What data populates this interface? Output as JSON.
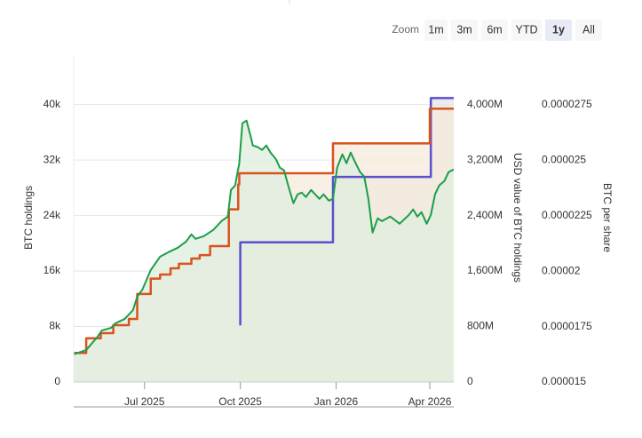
{
  "range_selector": {
    "label": "Zoom",
    "buttons": [
      "1m",
      "3m",
      "6m",
      "YTD",
      "1y",
      "All"
    ],
    "selected": "1y"
  },
  "chart_data": {
    "type": "line",
    "xlim": [
      "2025-04-24",
      "2026-04-24"
    ],
    "xticks": [
      {
        "value": "2025-07-01",
        "label": "Jul 2025"
      },
      {
        "value": "2025-10-01",
        "label": "Oct 2025"
      },
      {
        "value": "2026-01-01",
        "label": "Jan 2026"
      },
      {
        "value": "2026-04-01",
        "label": "Apr 2026"
      }
    ],
    "ylabel": "BTC holdings",
    "ylim": [
      0,
      47000
    ],
    "yticks": [
      0,
      {
        "value": 8000,
        "label": "8k"
      },
      {
        "value": 16000,
        "label": "16k"
      },
      {
        "value": 24000,
        "label": "24k"
      },
      {
        "value": 32000,
        "label": "32k"
      },
      {
        "value": 40000,
        "label": "40k"
      }
    ],
    "y2label": "USD value of BTC holdings",
    "y2lim": [
      0,
      4700
    ],
    "y2ticks": [
      0,
      {
        "value": 800,
        "label": "800M"
      },
      {
        "value": 1600,
        "label": "1,600M"
      },
      {
        "value": 2400,
        "label": "2,400M"
      },
      {
        "value": 3200,
        "label": "3,200M"
      },
      {
        "value": 4000,
        "label": "4,000M"
      }
    ],
    "y3label": "BTC per share",
    "y3lim": [
      1.5e-05,
      2.97e-05
    ],
    "y3ticks": [
      1.5e-05,
      1.75e-05,
      2e-05,
      2.25e-05,
      2.5e-05,
      2.75e-05
    ],
    "grid": true,
    "series": [
      {
        "color": "#1a9e4a",
        "fill": "#dfeede",
        "axis": "y2",
        "step": false,
        "x": [
          "2025-04-24",
          "2025-05-06",
          "2025-05-17",
          "2025-05-21",
          "2025-05-30",
          "2025-06-03",
          "2025-06-12",
          "2025-06-20",
          "2025-06-24",
          "2025-06-29",
          "2025-07-07",
          "2025-07-16",
          "2025-07-24",
          "2025-08-02",
          "2025-08-10",
          "2025-08-15",
          "2025-08-19",
          "2025-08-27",
          "2025-09-05",
          "2025-09-13",
          "2025-09-19",
          "2025-09-22",
          "2025-09-26",
          "2025-09-30",
          "2025-10-03",
          "2025-10-07",
          "2025-10-11",
          "2025-10-13",
          "2025-10-18",
          "2025-10-22",
          "2025-10-26",
          "2025-10-30",
          "2025-11-04",
          "2025-11-08",
          "2025-11-12",
          "2025-11-16",
          "2025-11-21",
          "2025-11-25",
          "2025-11-29",
          "2025-12-03",
          "2025-12-08",
          "2025-12-16",
          "2025-12-20",
          "2025-12-25",
          "2025-12-29",
          "2026-01-02",
          "2026-01-07",
          "2026-01-11",
          "2026-01-15",
          "2026-01-19",
          "2026-01-24",
          "2026-01-28",
          "2026-02-01",
          "2026-02-05",
          "2026-02-10",
          "2026-02-14",
          "2026-02-22",
          "2026-03-03",
          "2026-03-12",
          "2026-03-16",
          "2026-03-20",
          "2026-03-24",
          "2026-03-29",
          "2026-04-02",
          "2026-04-06",
          "2026-04-10",
          "2026-04-15",
          "2026-04-19",
          "2026-04-24"
        ],
        "values": [
          400,
          462,
          654,
          744,
          782,
          846,
          910,
          1038,
          1231,
          1333,
          1615,
          1808,
          1872,
          1936,
          2026,
          2128,
          2064,
          2103,
          2192,
          2320,
          2385,
          2769,
          2833,
          3154,
          3731,
          3769,
          3538,
          3410,
          3385,
          3346,
          3410,
          3308,
          3218,
          3090,
          3051,
          2833,
          2577,
          2705,
          2731,
          2667,
          2769,
          2641,
          2705,
          2615,
          2641,
          3090,
          3282,
          3154,
          3308,
          3179,
          3026,
          2962,
          2641,
          2154,
          2359,
          2320,
          2385,
          2282,
          2410,
          2487,
          2385,
          2449,
          2282,
          2410,
          2705,
          2833,
          2897,
          3026,
          3064
        ]
      },
      {
        "color": "#d9531e",
        "fill": "#f6e9dc",
        "axis": "y",
        "step": true,
        "x": [
          "2025-04-24",
          "2025-05-06",
          "2025-05-20",
          "2025-06-01",
          "2025-06-16",
          "2025-06-24",
          "2025-07-07",
          "2025-07-16",
          "2025-07-26",
          "2025-08-03",
          "2025-08-15",
          "2025-08-23",
          "2025-09-02",
          "2025-09-20",
          "2025-09-29",
          "2025-09-30",
          "2025-12-29",
          "2026-04-01",
          "2026-04-24"
        ],
        "values": [
          4200,
          6300,
          7050,
          8200,
          9100,
          12700,
          14900,
          15500,
          16400,
          17050,
          17800,
          18300,
          19600,
          24900,
          28500,
          30100,
          34400,
          39400,
          39400
        ]
      },
      {
        "color": "#5b4fd0",
        "fill": "#e6e6e6",
        "axis": "y3",
        "step": true,
        "x": [
          "2025-09-30",
          "2025-10-01",
          "2025-12-29",
          "2026-04-02",
          "2026-04-24"
        ],
        "values": [
          1.76e-05,
          2.13e-05,
          2.425e-05,
          2.78e-05,
          2.78e-05
        ]
      }
    ]
  }
}
